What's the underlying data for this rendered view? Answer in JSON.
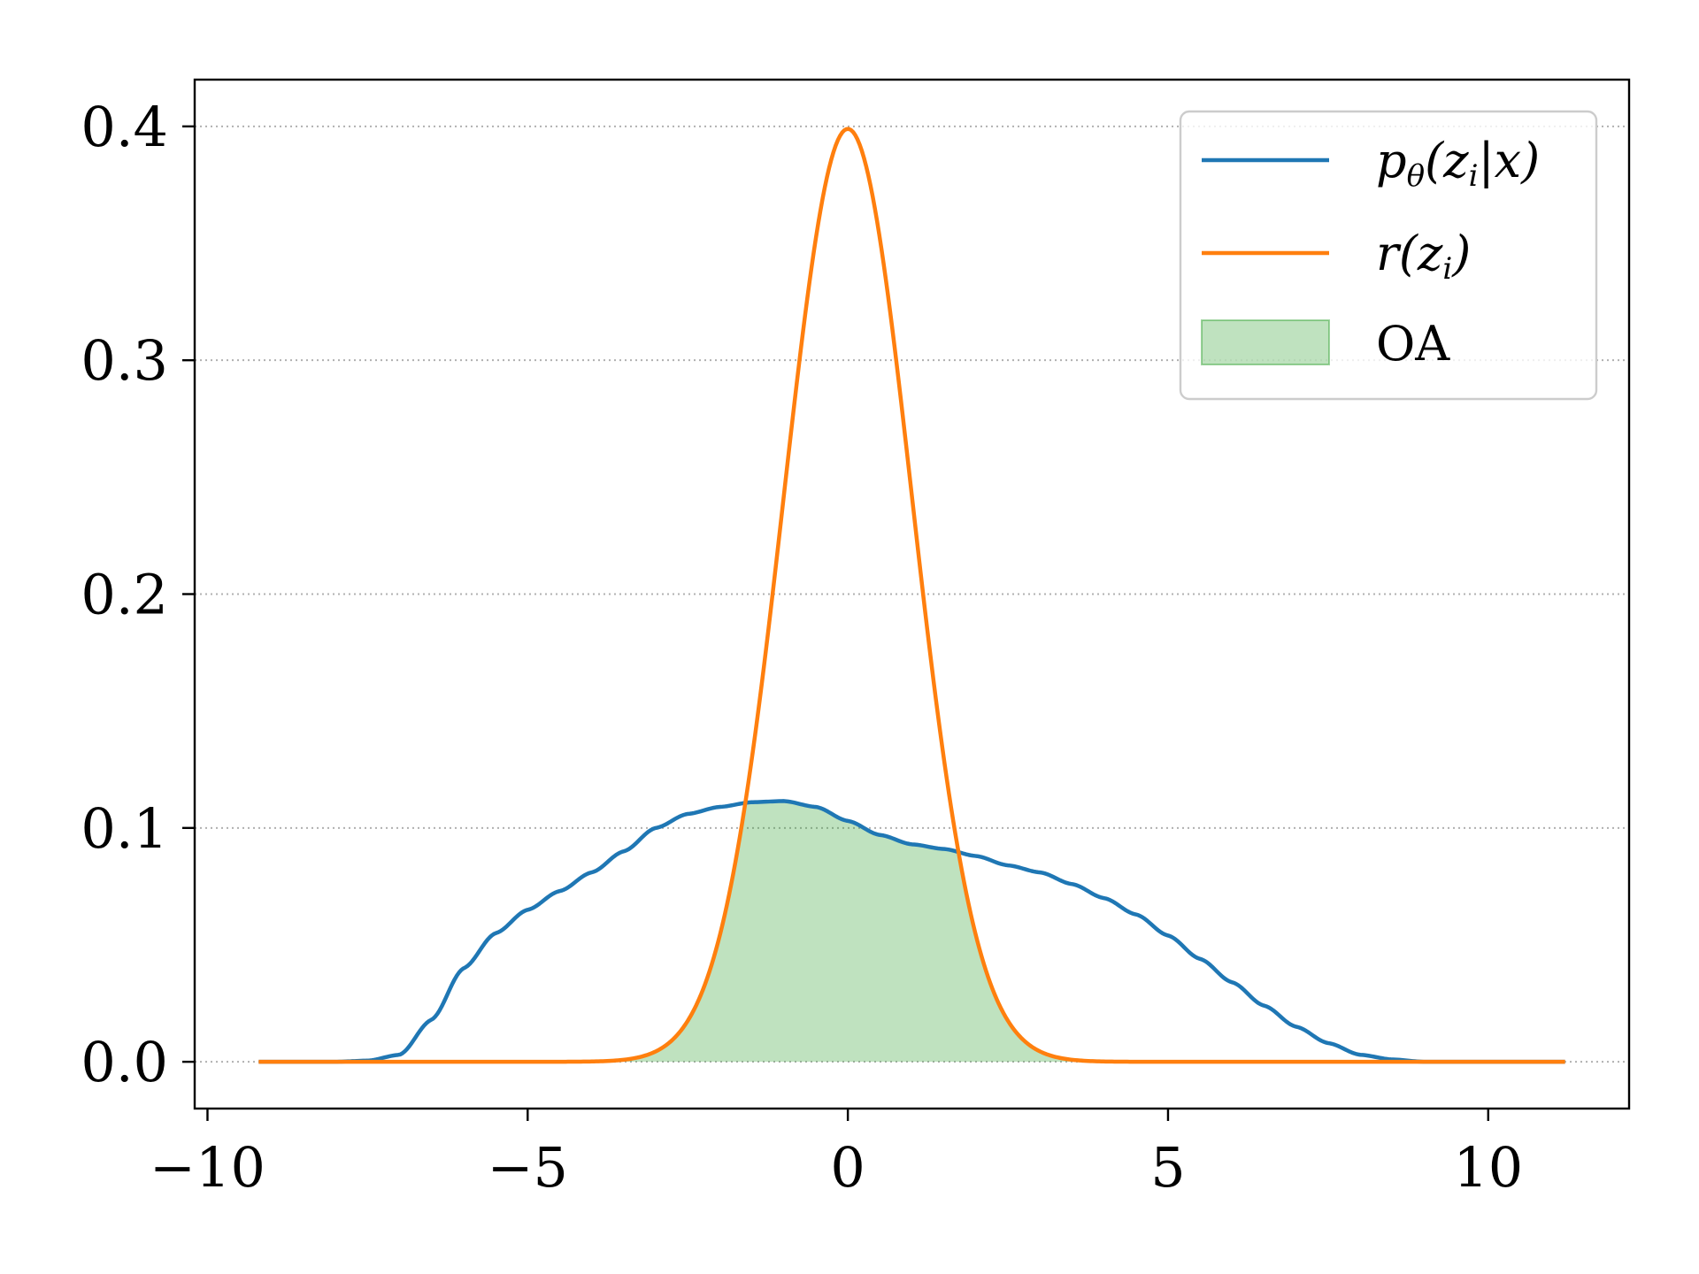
{
  "chart_data": {
    "type": "line",
    "xlim": [
      -10.2,
      12.2
    ],
    "ylim": [
      -0.02,
      0.42
    ],
    "x_ticks": [
      -10,
      -5,
      0,
      5,
      10
    ],
    "x_tick_labels": [
      "−10",
      "−5",
      "0",
      "5",
      "10"
    ],
    "y_ticks": [
      0.0,
      0.1,
      0.2,
      0.3,
      0.4
    ],
    "y_tick_labels": [
      "0.0",
      "0.1",
      "0.2",
      "0.3",
      "0.4"
    ],
    "grid": "horizontal-dotted",
    "legend_position": "top-right",
    "colors": {
      "p": "#1f77b4",
      "r": "#ff7f0e",
      "oa": "#2ca02c"
    },
    "series": [
      {
        "name": "pθ(zi|x)",
        "type": "line",
        "color": "#1f77b4",
        "x": [
          -9.2,
          -8,
          -7.5,
          -7,
          -6.5,
          -6,
          -5.5,
          -5,
          -4.5,
          -4,
          -3.5,
          -3,
          -2.5,
          -2,
          -1.5,
          -1,
          -0.5,
          0,
          0.5,
          1,
          1.5,
          2,
          2.5,
          3,
          3.5,
          4,
          4.5,
          5,
          5.5,
          6,
          6.5,
          7,
          7.5,
          8,
          8.5,
          9,
          11.2
        ],
        "y": [
          0.0,
          0.0,
          0.0005,
          0.003,
          0.018,
          0.04,
          0.055,
          0.065,
          0.073,
          0.081,
          0.09,
          0.1,
          0.106,
          0.109,
          0.111,
          0.1115,
          0.109,
          0.103,
          0.097,
          0.093,
          0.091,
          0.088,
          0.084,
          0.081,
          0.076,
          0.07,
          0.063,
          0.054,
          0.044,
          0.034,
          0.024,
          0.015,
          0.008,
          0.003,
          0.001,
          0.0,
          0.0
        ]
      },
      {
        "name": "r(zi)",
        "type": "line",
        "color": "#ff7f0e",
        "distribution": "normal",
        "mean": 0,
        "std": 1,
        "x_range": [
          -9.2,
          11.2
        ],
        "peak": 0.399
      },
      {
        "name": "OA",
        "type": "area",
        "color": "#2ca02c",
        "opacity": 0.3,
        "definition": "min(pθ(zi|x), r(zi))"
      }
    ]
  },
  "legend": {
    "items": [
      {
        "label_main": "p",
        "label_sub": "θ",
        "label_rest": "(z",
        "label_sub2": "i",
        "label_end": "|x)"
      },
      {
        "label_main": "r(z",
        "label_sub": "i",
        "label_end": ")"
      },
      {
        "label_main": "OA"
      }
    ]
  }
}
